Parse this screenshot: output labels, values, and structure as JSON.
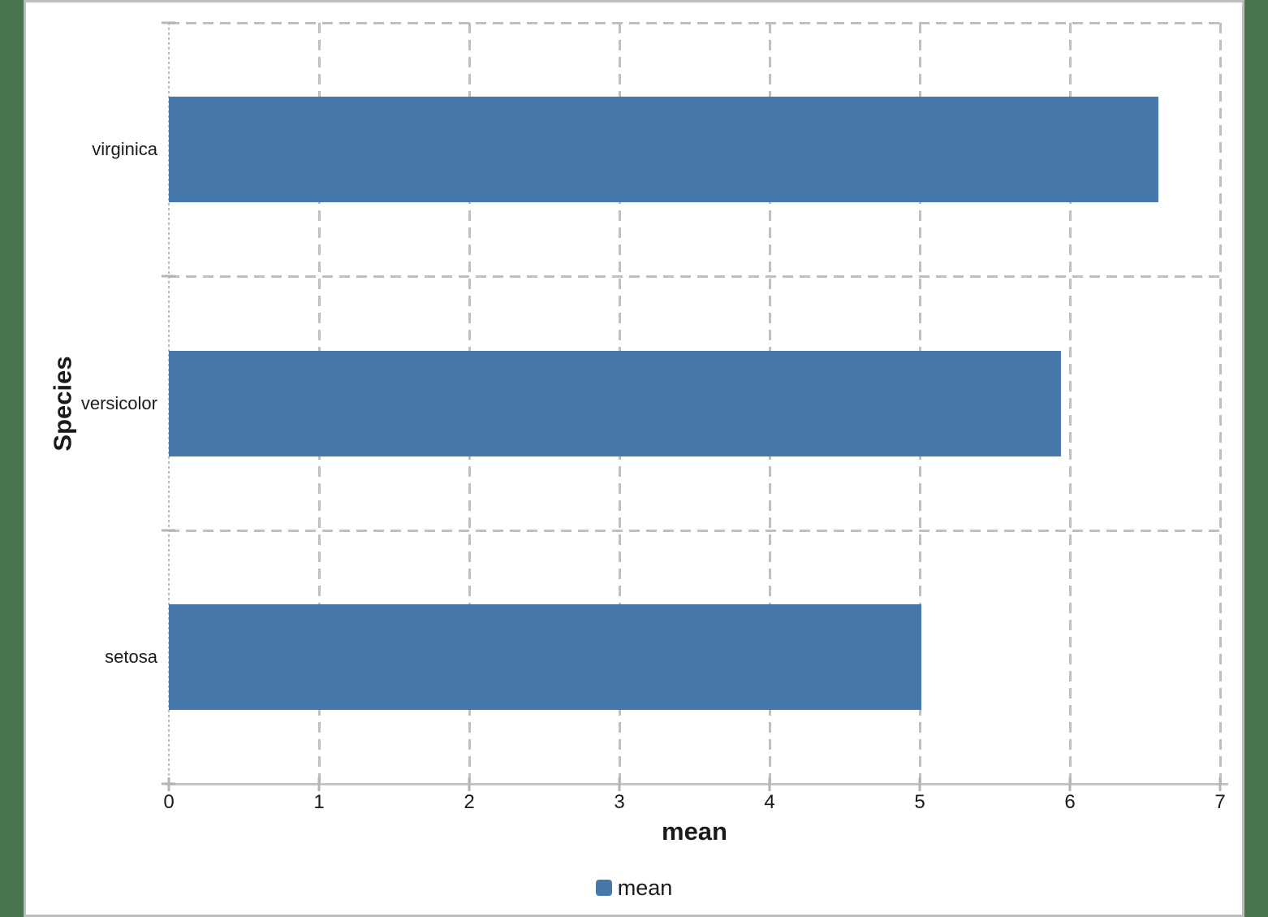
{
  "chart_data": {
    "type": "bar",
    "orientation": "horizontal",
    "title": "",
    "xlabel": "mean",
    "ylabel": "Species",
    "categories": [
      "virginica",
      "versicolor",
      "setosa"
    ],
    "series": [
      {
        "name": "mean",
        "values": [
          6.59,
          5.94,
          5.01
        ]
      }
    ],
    "xlim": [
      0,
      7
    ],
    "xticks": [
      0,
      1,
      2,
      3,
      4,
      5,
      6,
      7
    ],
    "grid": "dashed vertical gridlines at each integer; dashed horizontal lines at category band boundaries",
    "legend_position": "bottom-center",
    "colors": {
      "bar": "#4778AC",
      "gridline": "#BFBFBF",
      "axis": "#C4C4C4",
      "text": "#1A1A1A",
      "frame_border": "#BDBDBD",
      "outer_background": "#4A7350",
      "panel_background": "#FFFFFF"
    }
  }
}
